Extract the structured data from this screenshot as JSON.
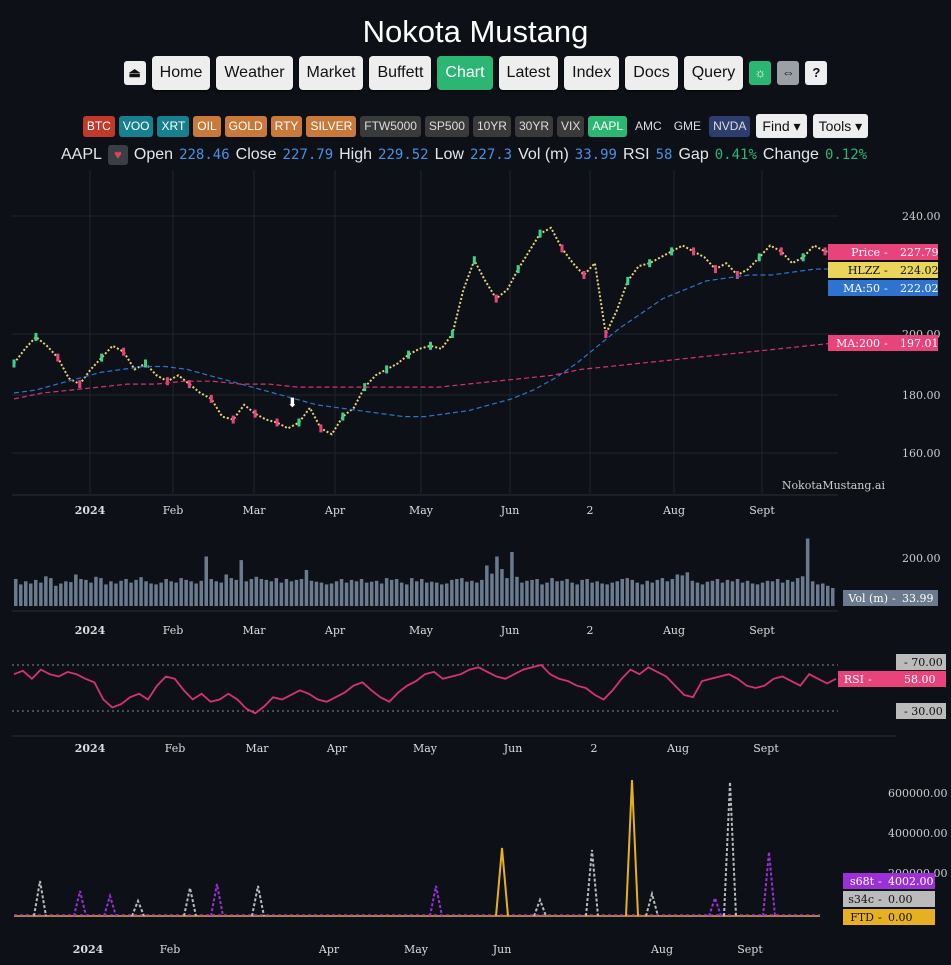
{
  "app_title": "Nokota Mustang",
  "nav": {
    "items": [
      "Home",
      "Weather",
      "Market",
      "Buffett",
      "Chart",
      "Latest",
      "Index",
      "Docs",
      "Query"
    ],
    "active": "Chart",
    "icons": [
      "logout-icon",
      "lightbulb-icon",
      "expand-icon",
      "help-icon"
    ],
    "help_label": "?"
  },
  "tickers": [
    {
      "label": "BTC",
      "style": "red"
    },
    {
      "label": "VOO",
      "style": "teal"
    },
    {
      "label": "XRT",
      "style": "teal"
    },
    {
      "label": "OIL",
      "style": "orange"
    },
    {
      "label": "GOLD",
      "style": "orange"
    },
    {
      "label": "RTY",
      "style": "orange"
    },
    {
      "label": "SILVER",
      "style": "orange"
    },
    {
      "label": "FTW5000",
      "style": "dark"
    },
    {
      "label": "SP500",
      "style": "dark"
    },
    {
      "label": "10YR",
      "style": "dark"
    },
    {
      "label": "30YR",
      "style": "dark"
    },
    {
      "label": "VIX",
      "style": "dark"
    },
    {
      "label": "AAPL",
      "style": "green"
    },
    {
      "label": "AMC",
      "style": "plain"
    },
    {
      "label": "GME",
      "style": "plain"
    },
    {
      "label": "NVDA",
      "style": "navy"
    }
  ],
  "dropdowns": {
    "find": "Find",
    "tools": "Tools"
  },
  "quote": {
    "symbol": "AAPL",
    "open_label": "Open",
    "open": "228.46",
    "close_label": "Close",
    "close": "227.79",
    "high_label": "High",
    "high": "229.52",
    "low_label": "Low",
    "low": "227.3",
    "vol_label": "Vol (m)",
    "vol": "33.99",
    "rsi_label": "RSI",
    "rsi": "58",
    "gap_label": "Gap",
    "gap": "0.41%",
    "change_label": "Change",
    "change": "0.12%"
  },
  "watermark": "NokotaMustang.ai",
  "chart_data": [
    {
      "type": "line",
      "panel": "price",
      "x_ticks": [
        "2024",
        "Feb",
        "Mar",
        "Apr",
        "May",
        "Jun",
        "2",
        "Aug",
        "Sept"
      ],
      "y_ticks": [
        "240.00",
        "200.00",
        "180.00",
        "160.00"
      ],
      "ylim": [
        150,
        245
      ],
      "series": [
        {
          "name": "Price",
          "color": "#e8437a",
          "last": "227.79",
          "values": [
            190,
            195,
            199,
            196,
            192,
            185,
            183,
            188,
            192,
            196,
            194,
            188,
            190,
            186,
            184,
            186,
            183,
            180,
            178,
            172,
            171,
            176,
            173,
            171,
            170,
            168,
            170,
            175,
            168,
            166,
            172,
            175,
            182,
            186,
            188,
            190,
            193,
            195,
            196,
            195,
            200,
            215,
            225,
            218,
            212,
            215,
            222,
            228,
            234,
            236,
            229,
            224,
            220,
            224,
            200,
            208,
            218,
            223,
            224,
            226,
            228,
            230,
            228,
            226,
            222,
            224,
            220,
            222,
            226,
            230,
            228,
            224,
            226,
            230,
            228,
            227.79
          ]
        },
        {
          "name": "HLZZ",
          "color": "#e8d55a",
          "last": "224.02"
        },
        {
          "name": "MA:50",
          "color": "#2f73d0",
          "last": "222.02",
          "values": [
            180,
            181,
            183,
            185,
            187,
            188,
            189,
            189,
            188,
            186,
            184,
            182,
            180,
            178,
            176,
            175,
            174,
            173,
            172,
            172,
            173,
            174,
            176,
            178,
            181,
            185,
            190,
            196,
            202,
            207,
            212,
            215,
            218,
            219,
            220,
            220,
            221,
            222,
            222.02
          ]
        },
        {
          "name": "MA:200",
          "color": "#d6336c",
          "last": "197.01",
          "values": [
            178,
            180,
            181,
            182,
            183,
            183,
            184,
            184,
            183,
            183,
            182,
            182,
            182,
            182,
            182,
            182,
            183,
            184,
            185,
            186,
            188,
            189,
            190,
            191,
            192,
            193,
            194,
            195,
            196,
            197.01
          ]
        }
      ]
    },
    {
      "type": "bar",
      "panel": "volume",
      "series": [
        {
          "name": "Vol (m)",
          "color": "#6b7a8f",
          "last": "33.99",
          "values": [
            60,
            48,
            55,
            50,
            58,
            52,
            66,
            62,
            45,
            50,
            55,
            53,
            70,
            60,
            58,
            52,
            65,
            62,
            48,
            55,
            50,
            56,
            60,
            52,
            58,
            64,
            55,
            50,
            48,
            52,
            60,
            55,
            52,
            62,
            58,
            55,
            50,
            56,
            110,
            60,
            55,
            52,
            70,
            62,
            58,
            102,
            55,
            60,
            65,
            60,
            58,
            55,
            62,
            52,
            60,
            55,
            58,
            60,
            80,
            56,
            54,
            52,
            48,
            50,
            55,
            60,
            52,
            58,
            55,
            60,
            52,
            54,
            56,
            50,
            62,
            58,
            60,
            52,
            48,
            62,
            55,
            60,
            52,
            54,
            52,
            48,
            50,
            58,
            60,
            62,
            54,
            56,
            52,
            58,
            90,
            72,
            110,
            82,
            62,
            120,
            65,
            52,
            56,
            58,
            60,
            48,
            52,
            62,
            55,
            56,
            60,
            52,
            48,
            58,
            60,
            52,
            55,
            50,
            48,
            52,
            55,
            60,
            62,
            58,
            52,
            48,
            56,
            52,
            58,
            62,
            55,
            60,
            70,
            68,
            75,
            56,
            52,
            48,
            54,
            56,
            60,
            52,
            58,
            55,
            60,
            52,
            56,
            50,
            48,
            52,
            56,
            55,
            60,
            52,
            58,
            54,
            62,
            66,
            150,
            55,
            48,
            50,
            45,
            40
          ]
        }
      ],
      "y_ticks": [
        "200.00"
      ]
    },
    {
      "type": "line",
      "panel": "rsi",
      "series": [
        {
          "name": "RSI",
          "color": "#d6336c",
          "last": "58.00",
          "values": [
            62,
            65,
            58,
            66,
            62,
            60,
            64,
            62,
            58,
            55,
            40,
            33,
            36,
            42,
            45,
            40,
            52,
            60,
            58,
            48,
            40,
            45,
            38,
            40,
            45,
            40,
            32,
            28,
            34,
            42,
            40,
            44,
            48,
            45,
            40,
            38,
            42,
            46,
            52,
            55,
            48,
            42,
            38,
            46,
            52,
            56,
            62,
            64,
            58,
            60,
            62,
            66,
            68,
            64,
            60,
            58,
            62,
            66,
            68,
            70,
            62,
            58,
            56,
            52,
            50,
            44,
            40,
            48,
            58,
            66,
            62,
            68,
            64,
            60,
            52,
            44,
            42,
            56,
            58,
            60,
            62,
            58,
            52,
            50,
            52,
            58,
            60,
            56,
            52,
            62,
            58,
            54,
            58
          ]
        }
      ],
      "ref_lines": [
        "70.00",
        "30.00"
      ]
    },
    {
      "type": "line",
      "panel": "short",
      "y_ticks": [
        "600000.00",
        "400000.00",
        "200000.00"
      ],
      "series": [
        {
          "name": "s68t",
          "color": "#9b30d9",
          "last": "4002.00"
        },
        {
          "name": "s34c",
          "color": "#bbbbbb",
          "last": "0.00"
        },
        {
          "name": "FTD",
          "color": "#e6b020",
          "last": "0.00"
        }
      ]
    }
  ],
  "x_axis_labels": [
    "2024",
    "Feb",
    "Mar",
    "Apr",
    "May",
    "Jun",
    "2",
    "Aug",
    "Sept"
  ],
  "short_x_labels": [
    "2024",
    "Feb",
    "Apr",
    "May",
    "Jun",
    "Aug",
    "Sept"
  ]
}
